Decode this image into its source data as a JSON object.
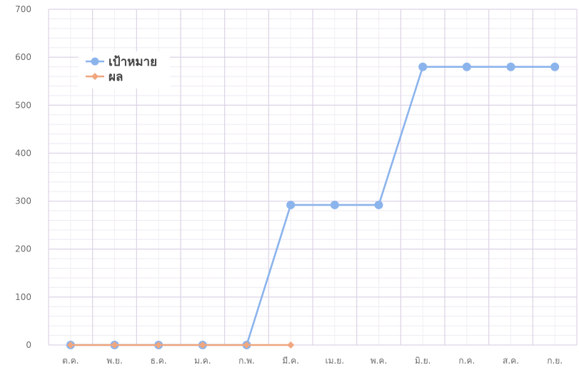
{
  "chart_data": {
    "type": "line",
    "title": "",
    "xlabel": "",
    "ylabel": "",
    "categories": [
      "ต.ค.",
      "พ.ย.",
      "ธ.ค.",
      "ม.ค.",
      "ก.พ.",
      "มี.ค.",
      "เม.ย.",
      "พ.ค.",
      "มิ.ย.",
      "ก.ค.",
      "ส.ค.",
      "ก.ย."
    ],
    "ylim": [
      0,
      700
    ],
    "yticks": [
      0,
      100,
      200,
      300,
      400,
      500,
      600,
      700
    ],
    "grid": true,
    "legend_position": "top-left",
    "series": [
      {
        "name": "เป้าหมาย",
        "color": "#8cb4ec",
        "marker": "circle",
        "values": [
          0,
          0,
          0,
          0,
          0,
          292,
          292,
          292,
          580,
          580,
          580,
          580
        ]
      },
      {
        "name": "ผล",
        "color": "#f0a67e",
        "marker": "diamond",
        "values": [
          0,
          0,
          0,
          0,
          0,
          0,
          null,
          null,
          null,
          null,
          null,
          null
        ]
      }
    ]
  }
}
